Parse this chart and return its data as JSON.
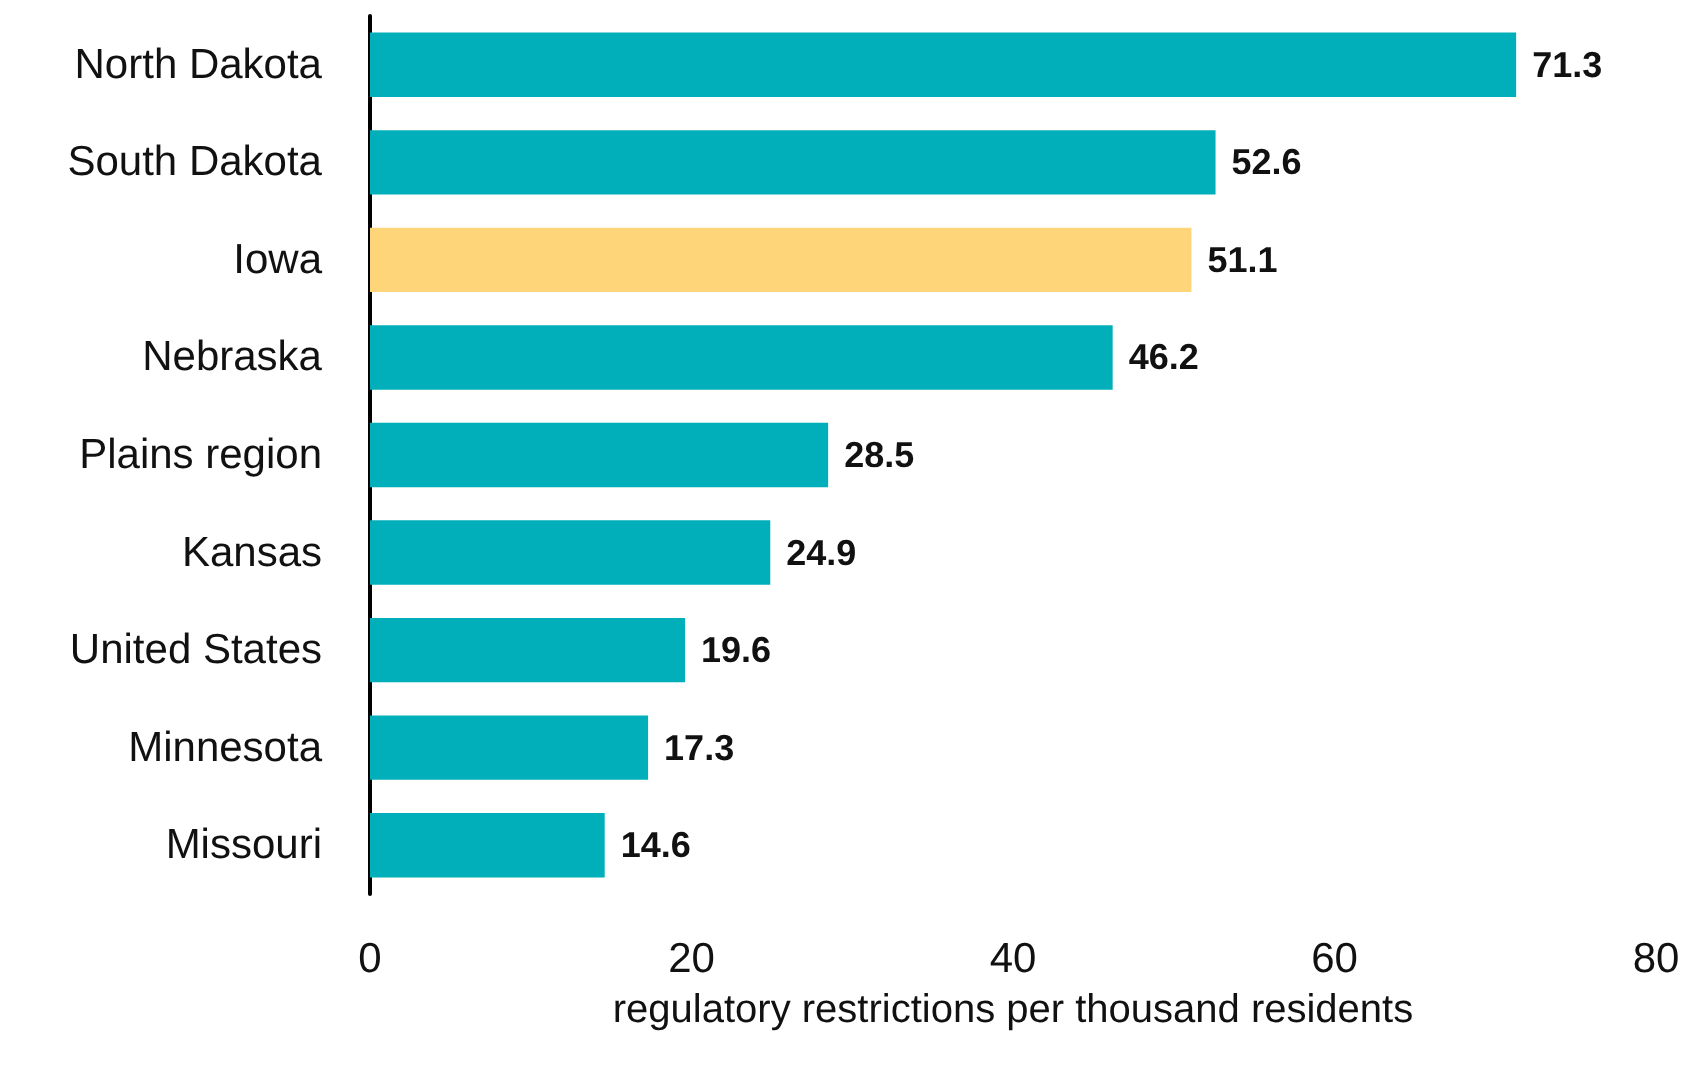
{
  "chart_data": {
    "type": "bar",
    "orientation": "horizontal",
    "xlabel": "regulatory restrictions per thousand residents",
    "categories": [
      "North Dakota",
      "South Dakota",
      "Iowa",
      "Nebraska",
      "Plains region",
      "Kansas",
      "United States",
      "Minnesota",
      "Missouri"
    ],
    "values": [
      71.3,
      52.6,
      51.1,
      46.2,
      28.5,
      24.9,
      19.6,
      17.3,
      14.6
    ],
    "colors": [
      "#00afb9",
      "#00afb9",
      "#ffd57a",
      "#00afb9",
      "#00afb9",
      "#00afb9",
      "#00afb9",
      "#00afb9",
      "#00afb9"
    ],
    "xlim": [
      0,
      80
    ],
    "xticks": [
      0,
      20,
      40,
      60,
      80
    ],
    "grid": false,
    "data_labels": true
  }
}
